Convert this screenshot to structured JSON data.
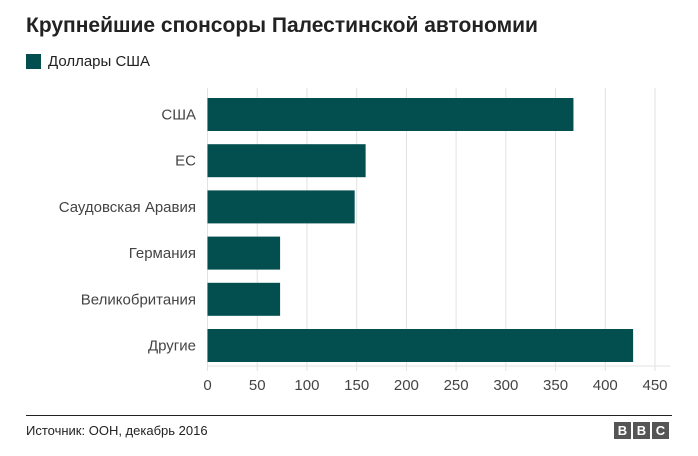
{
  "chart_data": {
    "type": "bar",
    "orientation": "horizontal",
    "title": "Крупнейшие спонсоры Палестинской автономии",
    "legend": [
      "Доллары США"
    ],
    "categories": [
      "США",
      "ЕС",
      "Саудовская Аравия",
      "Германия",
      "Великобритания",
      "Другие"
    ],
    "values": [
      368,
      159,
      148,
      73,
      73,
      428
    ],
    "xlim": [
      0,
      450
    ],
    "xticks": [
      0,
      50,
      100,
      150,
      200,
      250,
      300,
      350,
      400,
      450
    ],
    "xlabel": "",
    "ylabel": "",
    "grid": true,
    "color": "#034e4e"
  },
  "footer": {
    "source": "Источник: ООН, декабрь 2016",
    "logo": [
      "B",
      "B",
      "C"
    ]
  }
}
